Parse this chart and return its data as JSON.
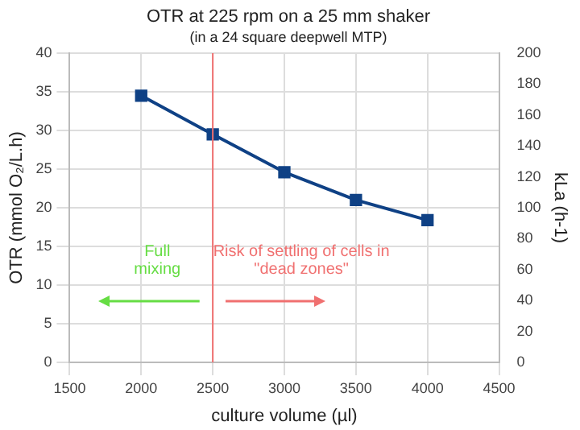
{
  "chart_data": {
    "type": "line",
    "title": "OTR at 225 rpm on a 25 mm shaker",
    "subtitle": "(in a 24 square deepwell MTP)",
    "xlabel": "culture volume (µl)",
    "ylabel": "OTR (mmol O₂/L.h)",
    "y2label": "kLa (h-1)",
    "x": [
      2000,
      2500,
      3000,
      3500,
      4000
    ],
    "series": [
      {
        "color": "#0f4185",
        "values": [
          34.5,
          29.5,
          24.6,
          21.0,
          18.4
        ]
      }
    ],
    "xlim": [
      1500,
      4500
    ],
    "xticks": [
      1500,
      2000,
      2500,
      3000,
      3500,
      4000,
      4500
    ],
    "ylim": [
      0,
      40
    ],
    "yticks": [
      0,
      5,
      10,
      15,
      20,
      25,
      30,
      35,
      40
    ],
    "y2lim": [
      0,
      200
    ],
    "y2ticks": [
      0,
      20,
      40,
      60,
      80,
      100,
      120,
      140,
      160,
      180,
      200
    ],
    "ref_lines": [
      {
        "axis": "x",
        "value": 2500,
        "color": "#f07070"
      }
    ],
    "annotations": [
      "Full mixing",
      "Risk of settling of cells in \"dead zones\""
    ],
    "grid": true,
    "legend": false,
    "marker": "square",
    "line_style": "solid"
  }
}
